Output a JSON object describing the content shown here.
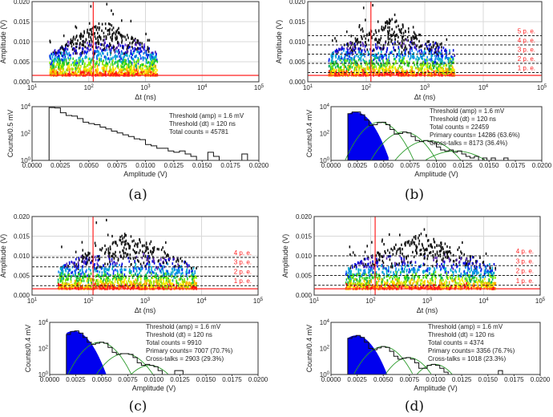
{
  "chart_data": [
    {
      "label": "(a)",
      "type": "heatmap+histogram",
      "scatter": {
        "xlabel": "Δt (ns)",
        "ylabel": "Amplitude (V)",
        "xlog_range": [
          1,
          5
        ],
        "ylim": [
          0,
          0.02
        ],
        "data_xlog_span": [
          1.3,
          3.2
        ],
        "threshold_amp": 0.0016,
        "threshold_dt": 120,
        "pe_levels": []
      },
      "hist": {
        "xlabel": "Amplitude (V)",
        "ylabel": "Counts/0.5 mV",
        "ylim_log": [
          0,
          4
        ],
        "xlim": [
          0,
          0.02
        ],
        "bin_start": 0.0015,
        "bin_width": 0.0005,
        "values": [
          8500,
          8000,
          3500,
          2200,
          2000,
          1300,
          700,
          550,
          450,
          300,
          220,
          150,
          110,
          80,
          60,
          40,
          35,
          15,
          12,
          8,
          8,
          5,
          4,
          5,
          3,
          2,
          1,
          1,
          4,
          2,
          1,
          1,
          1,
          1,
          3,
          1
        ],
        "fits": [],
        "stats": [
          "Threshold (amp) = 1.6 mV",
          "Threshold (dt) = 120 ns",
          "Total counts = 45781"
        ]
      }
    },
    {
      "label": "(b)",
      "type": "heatmap+histogram",
      "scatter": {
        "xlabel": "Δt (ns)",
        "ylabel": "Amplitude (V)",
        "xlog_range": [
          1,
          5
        ],
        "ylim": [
          0,
          0.02
        ],
        "data_xlog_span": [
          1.35,
          3.5
        ],
        "threshold_amp": 0.0016,
        "threshold_dt": 120,
        "pe_levels": [
          {
            "label": "1 p. e.",
            "value": 0.0023
          },
          {
            "label": "2 p. e.",
            "value": 0.0046
          },
          {
            "label": "3 p. e.",
            "value": 0.0069
          },
          {
            "label": "4 p. e.",
            "value": 0.0092
          },
          {
            "label": "5 p. e.",
            "value": 0.0115
          }
        ]
      },
      "hist": {
        "xlabel": "Amplitude (V)",
        "ylabel": "Counts/0.4 mV",
        "ylim_log": [
          0,
          4
        ],
        "xlim": [
          0,
          0.02
        ],
        "bin_start": 0.0016,
        "bin_width": 0.0004,
        "values": [
          3000,
          4000,
          4000,
          2500,
          1000,
          400,
          450,
          650,
          700,
          450,
          200,
          90,
          100,
          130,
          110,
          60,
          30,
          25,
          30,
          25,
          20,
          10,
          6,
          5,
          6,
          4,
          5,
          3,
          2,
          1.5,
          2,
          1,
          1.5,
          1,
          1.5,
          1,
          1,
          1.5,
          1,
          1,
          1,
          1
        ],
        "fits": [
          {
            "mu": 0.0023,
            "amp": 4000,
            "sigma": 0.0008,
            "filled": true
          },
          {
            "mu": 0.0046,
            "amp": 700,
            "sigma": 0.0009
          },
          {
            "mu": 0.0069,
            "amp": 130,
            "sigma": 0.001
          },
          {
            "mu": 0.0092,
            "amp": 30,
            "sigma": 0.0012
          },
          {
            "mu": 0.0118,
            "amp": 5,
            "sigma": 0.0016
          }
        ],
        "stats": [
          "Threshold (amp) = 1.6 mV",
          "Threshold (dt) = 120 ns",
          "Total counts = 22459",
          "Primary counts= 14286 (63.6%)",
          "Cross-talks = 8173 (36.4%)"
        ]
      }
    },
    {
      "label": "(c)",
      "type": "heatmap+histogram",
      "scatter": {
        "xlabel": "Δt (ns)",
        "ylabel": "Amplitude (V)",
        "xlog_range": [
          1,
          5
        ],
        "ylim": [
          0,
          0.02
        ],
        "data_xlog_span": [
          1.45,
          3.9
        ],
        "threshold_amp": 0.0016,
        "threshold_dt": 120,
        "pe_levels": [
          {
            "label": "1 p. e.",
            "value": 0.0024
          },
          {
            "label": "2 p. e.",
            "value": 0.0048
          },
          {
            "label": "3 p. e.",
            "value": 0.0072
          },
          {
            "label": "4 p. e.",
            "value": 0.0096
          }
        ]
      },
      "hist": {
        "xlabel": "Amplitude (V)",
        "ylabel": "Counts/0.4 mV",
        "ylim_log": [
          0,
          4
        ],
        "xlim": [
          0,
          0.02
        ],
        "bin_start": 0.0016,
        "bin_width": 0.0004,
        "values": [
          1200,
          2000,
          2200,
          1500,
          700,
          300,
          200,
          250,
          300,
          250,
          120,
          50,
          35,
          40,
          40,
          35,
          20,
          8,
          5,
          6,
          5,
          4,
          2,
          1,
          0,
          0,
          2,
          2,
          1
        ],
        "fits": [
          {
            "mu": 0.0023,
            "amp": 2200,
            "sigma": 0.0008,
            "filled": true
          },
          {
            "mu": 0.0048,
            "amp": 300,
            "sigma": 0.0009
          },
          {
            "mu": 0.0072,
            "amp": 40,
            "sigma": 0.001
          },
          {
            "mu": 0.0096,
            "amp": 5,
            "sigma": 0.001
          }
        ],
        "stats": [
          "Threshold (amp) = 1.6 mV",
          "Threshold (dt) = 120 ns",
          "Total counts = 9910",
          "Primary counts= 7007 (70.7%)",
          "Cross-talks = 2903 (29.3%)"
        ]
      }
    },
    {
      "label": "(d)",
      "type": "heatmap+histogram",
      "scatter": {
        "xlabel": "Δt (ns)",
        "ylabel": "Amplitude (V)",
        "xlog_range": [
          1,
          5
        ],
        "ylim": [
          0,
          0.02
        ],
        "data_xlog_span": [
          1.55,
          4.2
        ],
        "threshold_amp": 0.0016,
        "threshold_dt": 120,
        "pe_levels": [
          {
            "label": "1 p. e.",
            "value": 0.0025
          },
          {
            "label": "2 p. e.",
            "value": 0.005
          },
          {
            "label": "3 p. e.",
            "value": 0.0075
          },
          {
            "label": "4 p. e.",
            "value": 0.01
          }
        ]
      },
      "hist": {
        "xlabel": "Amplitude (V)",
        "ylabel": "Counts/0.4 mV",
        "ylim_log": [
          0,
          4
        ],
        "xlim": [
          0,
          0.02
        ],
        "bin_start": 0.0016,
        "bin_width": 0.0004,
        "values": [
          600,
          800,
          1000,
          700,
          300,
          100,
          80,
          110,
          140,
          120,
          60,
          25,
          15,
          18,
          20,
          15,
          8,
          3,
          3,
          5,
          6,
          5,
          3,
          1.5,
          1,
          0,
          0,
          0,
          0,
          0,
          0,
          0,
          0,
          0,
          0,
          0,
          2
        ],
        "fits": [
          {
            "mu": 0.0024,
            "amp": 1000,
            "sigma": 0.0008,
            "filled": true
          },
          {
            "mu": 0.005,
            "amp": 140,
            "sigma": 0.0009
          },
          {
            "mu": 0.0074,
            "amp": 20,
            "sigma": 0.0009
          },
          {
            "mu": 0.0099,
            "amp": 6,
            "sigma": 0.0009
          }
        ],
        "stats": [
          "Threshold (amp) = 1.6 mV",
          "Threshold (dt) = 120 ns",
          "Total counts = 4374",
          "Primary counts= 3356 (76.7%)",
          "Cross-talks = 1018 (23.3%)"
        ]
      }
    }
  ],
  "ticks": {
    "scatter_y": [
      "0.000",
      "0.005",
      "0.010",
      "0.015",
      "0.020"
    ],
    "scatter_x_base": "10",
    "scatter_x_exp": [
      "1",
      "2",
      "3",
      "4",
      "5"
    ],
    "hist_x": [
      "0.0000",
      "0.0025",
      "0.0050",
      "0.0075",
      "0.0100",
      "0.0125",
      "0.0150",
      "0.0175",
      "0.0200"
    ],
    "hist_y_base": "10",
    "hist_y_exp": [
      "0",
      "2",
      "4"
    ]
  },
  "colors": {
    "threshold": "#ff2020",
    "fill": "#0000ee",
    "fit": "#2a9a2a",
    "grid": "#d8d8d8"
  }
}
